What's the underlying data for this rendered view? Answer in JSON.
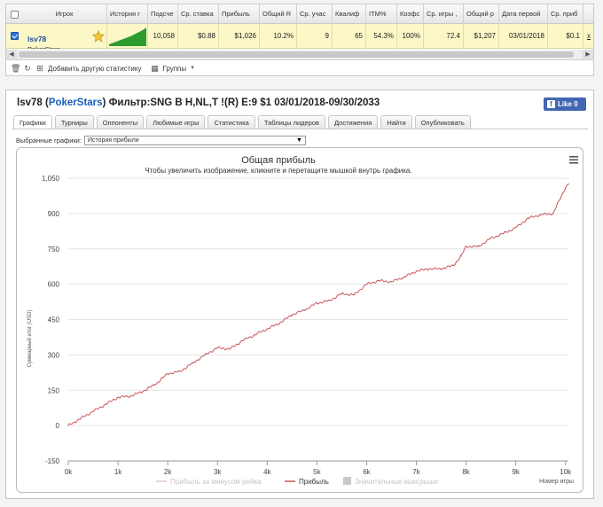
{
  "grid": {
    "headers": {
      "player": "Игрок",
      "history": "История г",
      "count": "Подсче",
      "avg_stake": "Ср. ставка",
      "profit": "Прибыль",
      "total_roi": "Общий R",
      "avg_players": "Ср. учас",
      "qualif": "Квалиф",
      "itm": "ITM%",
      "coef": "Коэфс",
      "avg_game": "Ср. игры ,",
      "total_p": "Общий р",
      "first_date": "Дата первой",
      "avg_profit": "Ср. приб"
    },
    "row": {
      "player": "lsv78",
      "site": "PokerStars",
      "count": "10,058",
      "avg_stake": "$0.88",
      "profit": "$1,026",
      "total_roi": "10.2%",
      "avg_players": "9",
      "qualif": "65",
      "itm": "54.3%",
      "coef": "100%",
      "avg_game": "72.4",
      "total_p": "$1,207",
      "first_date": "03/01/2018",
      "avg_profit": "$0.1",
      "extra": "x"
    },
    "footer": {
      "add_stats": "Добавить другую статистику",
      "groups": "Группы"
    },
    "colors": {
      "row_bg": "#fbf7c7",
      "star": "#f2c438",
      "spark": "#2e9b2e"
    }
  },
  "report": {
    "player": "lsv78",
    "site": "PokerStars",
    "filter": "Фильтр:SNG B H,NL,T !(R) E:9 $1 03/01/2018-09/30/2033",
    "fb_like": "Like 0",
    "tabs": [
      "Графики",
      "Турниры",
      "Оппоненты",
      "Любимые игры",
      "Статистика",
      "Таблицы лидеров",
      "Достижения",
      "Найти",
      "Опубликовать"
    ],
    "active_tab": 0,
    "selector_label": "Выбранные графики:",
    "selector_value": "История прибыли"
  },
  "chart_data": {
    "type": "line",
    "title": "Общая прибыль",
    "subtitle": "Чтобы увеличить изображение, кликните и перетащите мышкой внутрь графика.",
    "ylabel": "Суммарный итог (USD)",
    "xlabel": "Номер игры",
    "xlim": [
      0,
      10058
    ],
    "ylim": [
      -150,
      1050
    ],
    "y_ticks": [
      "-150",
      "0",
      "150",
      "300",
      "450",
      "600",
      "750",
      "900",
      "1,050"
    ],
    "y_tick_values": [
      -150,
      0,
      150,
      300,
      450,
      600,
      750,
      900,
      1050
    ],
    "x_ticks": [
      "0k",
      "1k",
      "2k",
      "3k",
      "4k",
      "5k",
      "6k",
      "7k",
      "8k",
      "9k",
      "10k"
    ],
    "x_tick_values": [
      0,
      1000,
      2000,
      3000,
      4000,
      5000,
      6000,
      7000,
      8000,
      9000,
      10000
    ],
    "grid": true,
    "legend": {
      "placement": "bottom",
      "items": [
        "Прибыль за минусом рейка",
        "Прибыль",
        "Значительные выигрыши"
      ]
    },
    "series": [
      {
        "name": "Прибыль",
        "color": "#c9585b",
        "x": [
          0,
          250,
          500,
          750,
          1000,
          1250,
          1500,
          1750,
          2000,
          2250,
          2500,
          2750,
          3000,
          3250,
          3500,
          3750,
          4000,
          4250,
          4500,
          4750,
          5000,
          5250,
          5500,
          5750,
          6000,
          6250,
          6500,
          6750,
          7000,
          7250,
          7500,
          7750,
          7900,
          8000,
          8250,
          8500,
          8750,
          9000,
          9250,
          9500,
          9750,
          10000,
          10058
        ],
        "y": [
          0,
          30,
          60,
          90,
          120,
          125,
          145,
          175,
          220,
          230,
          265,
          300,
          330,
          325,
          360,
          385,
          410,
          435,
          470,
          490,
          520,
          530,
          560,
          555,
          600,
          615,
          610,
          630,
          655,
          665,
          665,
          680,
          720,
          760,
          760,
          795,
          815,
          840,
          880,
          895,
          900,
          1010,
          1026
        ]
      }
    ]
  }
}
